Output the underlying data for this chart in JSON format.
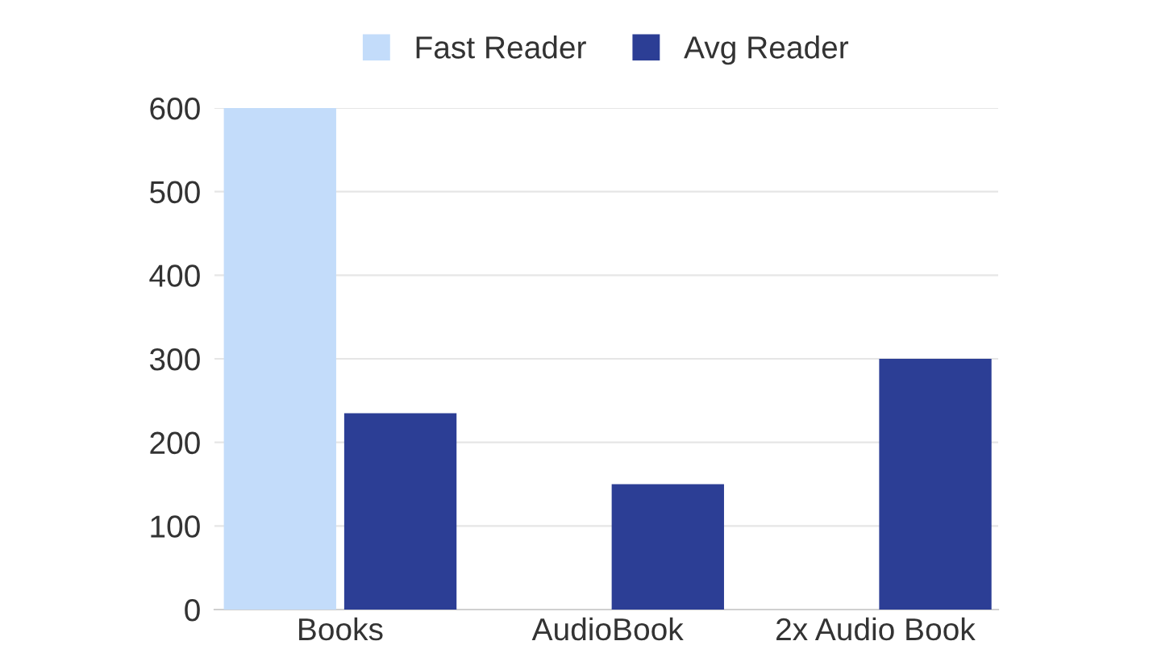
{
  "chart_data": {
    "type": "bar",
    "categories": [
      "Books",
      "AudioBook",
      "2x Audio Book"
    ],
    "series": [
      {
        "name": "Fast Reader",
        "color": "#c3dcfa",
        "values": [
          600,
          null,
          null
        ]
      },
      {
        "name": "Avg Reader",
        "color": "#2c3e95",
        "values": [
          235,
          150,
          300
        ]
      }
    ],
    "ylim": [
      0,
      600
    ],
    "yticks": [
      0,
      100,
      200,
      300,
      400,
      500,
      600
    ],
    "grid": "y",
    "legend": "top"
  }
}
